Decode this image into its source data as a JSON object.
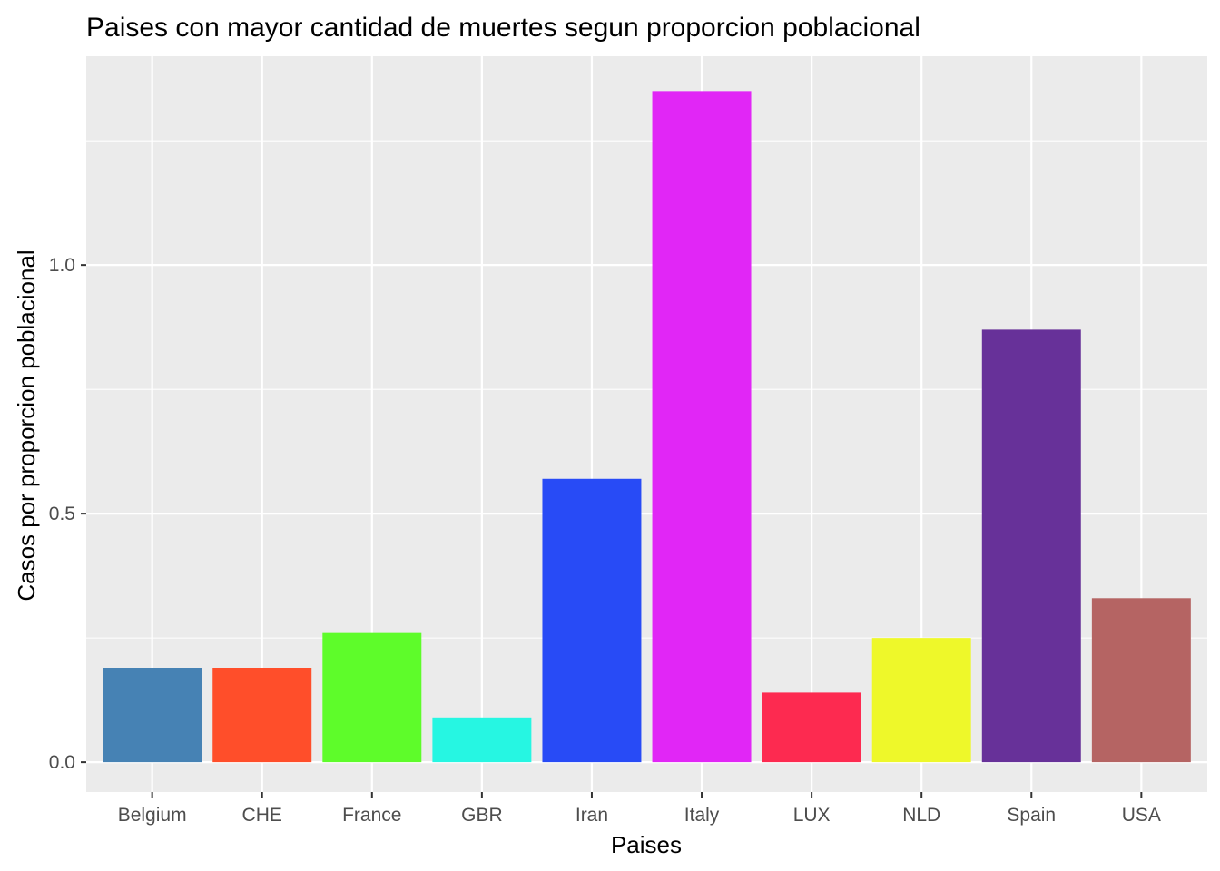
{
  "chart_data": {
    "type": "bar",
    "title": "Paises con mayor cantidad de muertes segun proporcion poblacional",
    "xlabel": "Paises",
    "ylabel": "Casos por proporcion poblacional",
    "categories": [
      "Belgium",
      "CHE",
      "France",
      "GBR",
      "Iran",
      "Italy",
      "LUX",
      "NLD",
      "Spain",
      "USA"
    ],
    "values": [
      0.19,
      0.19,
      0.26,
      0.09,
      0.57,
      1.35,
      0.14,
      0.25,
      0.87,
      0.33
    ],
    "colors": [
      "#4682B4",
      "#FF4E2A",
      "#5EFC2A",
      "#26F6E2",
      "#284BF6",
      "#E126F6",
      "#FD2A50",
      "#EEF82A",
      "#673199",
      "#B56463"
    ],
    "ylim": [
      -0.06,
      1.42
    ],
    "yticks": [
      0.0,
      0.5,
      1.0
    ],
    "ytick_labels": [
      "0.0",
      "0.5",
      "1.0"
    ],
    "grid": true,
    "panel_background": "#EBEBEB",
    "grid_color": "#FFFFFF",
    "legend": "none"
  }
}
